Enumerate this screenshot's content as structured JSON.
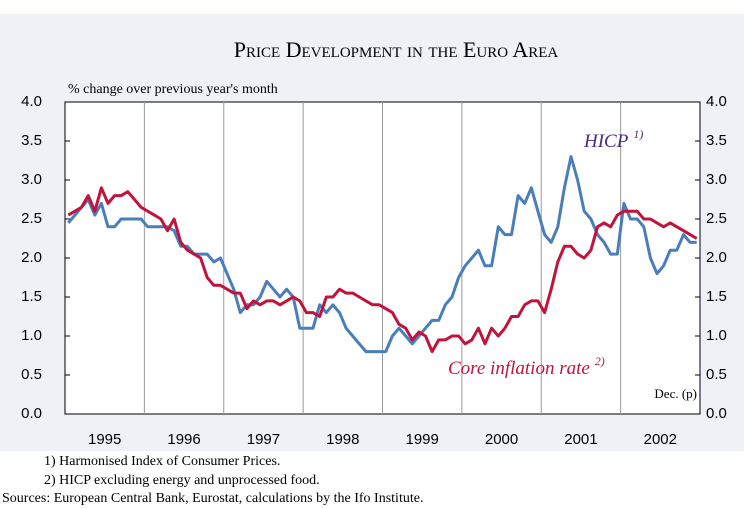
{
  "chart_data": {
    "type": "line",
    "title": "Price Development in the Euro Area",
    "y_label": "% change over previous year's month",
    "annotation": "Dec. (p)",
    "categories": [
      null,
      null,
      null,
      null,
      null,
      "1995",
      null,
      null,
      null,
      null,
      null,
      null,
      null,
      null,
      null,
      null,
      null,
      "1996",
      null,
      null,
      null,
      null,
      null,
      null,
      null,
      null,
      null,
      null,
      null,
      "1997",
      null,
      null,
      null,
      null,
      null,
      null,
      null,
      null,
      null,
      null,
      null,
      "1998",
      null,
      null,
      null,
      null,
      null,
      null,
      null,
      null,
      null,
      null,
      null,
      "1999",
      null,
      null,
      null,
      null,
      null,
      null,
      null,
      null,
      null,
      null,
      null,
      "2000",
      null,
      null,
      null,
      null,
      null,
      null,
      null,
      null,
      null,
      null,
      null,
      "2001",
      null,
      null,
      null,
      null,
      null,
      null,
      null,
      null,
      null,
      null,
      null,
      "2002",
      null,
      null,
      null,
      null,
      null,
      null
    ],
    "series": [
      {
        "name": "HICP",
        "note": "1)",
        "color": "#4a7ebb",
        "values": [
          2.45,
          2.55,
          2.65,
          2.75,
          2.55,
          2.7,
          2.4,
          2.4,
          2.5,
          2.5,
          2.5,
          2.5,
          2.4,
          2.4,
          2.4,
          2.4,
          2.35,
          2.15,
          2.15,
          2.05,
          2.05,
          2.05,
          1.95,
          2.0,
          1.8,
          1.6,
          1.3,
          1.4,
          1.4,
          1.5,
          1.7,
          1.6,
          1.5,
          1.6,
          1.5,
          1.1,
          1.1,
          1.1,
          1.4,
          1.3,
          1.4,
          1.3,
          1.1,
          1.0,
          0.9,
          0.8,
          0.8,
          0.8,
          0.8,
          1.0,
          1.1,
          1.0,
          0.9,
          1.0,
          1.1,
          1.2,
          1.2,
          1.4,
          1.5,
          1.75,
          1.9,
          2.0,
          2.1,
          1.9,
          1.9,
          2.4,
          2.3,
          2.3,
          2.8,
          2.7,
          2.9,
          2.6,
          2.3,
          2.2,
          2.4,
          2.9,
          3.3,
          3.0,
          2.6,
          2.5,
          2.3,
          2.2,
          2.05,
          2.05,
          2.7,
          2.5,
          2.5,
          2.4,
          2.0,
          1.8,
          1.9,
          2.1,
          2.1,
          2.3,
          2.2,
          2.2
        ]
      },
      {
        "name": "Core inflation rate",
        "note": "2)",
        "color": "#c0143c",
        "values": [
          2.55,
          2.6,
          2.65,
          2.8,
          2.6,
          2.9,
          2.7,
          2.8,
          2.8,
          2.85,
          2.75,
          2.65,
          2.6,
          2.55,
          2.5,
          2.35,
          2.5,
          2.2,
          2.1,
          2.05,
          2.0,
          1.75,
          1.65,
          1.65,
          1.6,
          1.55,
          1.55,
          1.35,
          1.45,
          1.4,
          1.45,
          1.45,
          1.4,
          1.45,
          1.5,
          1.45,
          1.3,
          1.3,
          1.25,
          1.5,
          1.5,
          1.6,
          1.55,
          1.55,
          1.5,
          1.45,
          1.4,
          1.4,
          1.35,
          1.3,
          1.15,
          1.1,
          0.95,
          1.05,
          1.0,
          0.8,
          0.95,
          0.95,
          1.0,
          1.0,
          0.9,
          0.95,
          1.1,
          0.9,
          1.1,
          1.0,
          1.1,
          1.25,
          1.25,
          1.4,
          1.45,
          1.45,
          1.3,
          1.6,
          1.95,
          2.15,
          2.15,
          2.05,
          2.0,
          2.1,
          2.4,
          2.45,
          2.4,
          2.55,
          2.6,
          2.6,
          2.6,
          2.5,
          2.5,
          2.45,
          2.4,
          2.45,
          2.4,
          2.35,
          2.3,
          2.25
        ]
      }
    ],
    "ylim": [
      0,
      4
    ],
    "yticks": [
      {
        "value": 0,
        "label": "0.0"
      },
      {
        "value": 0.5,
        "label": "0.5"
      },
      {
        "value": 1,
        "label": "1.0"
      },
      {
        "value": 1.5,
        "label": "1.5"
      },
      {
        "value": 2,
        "label": "2.0"
      },
      {
        "value": 2.5,
        "label": "2.5"
      },
      {
        "value": 3,
        "label": "3.0"
      },
      {
        "value": 3.5,
        "label": "3.5"
      },
      {
        "value": 4,
        "label": "4.0"
      }
    ],
    "y2lim": [
      0,
      4
    ],
    "y2ticks": [
      {
        "value": 0,
        "label": "0.0"
      },
      {
        "value": 0.5,
        "label": "0.5"
      },
      {
        "value": 1,
        "label": "1.0"
      },
      {
        "value": 1.5,
        "label": "1.5"
      },
      {
        "value": 2,
        "label": "2.0"
      },
      {
        "value": 2.5,
        "label": "2.5"
      },
      {
        "value": 3,
        "label": "3.0"
      },
      {
        "value": 3.5,
        "label": "3.5"
      },
      {
        "value": 4,
        "label": "4.0"
      }
    ],
    "grid": false,
    "footnotes": [
      "1) Harmonised Index of Consumer Prices.",
      "2) HICP excluding energy and unprocessed food."
    ],
    "source": "Sources: European Central Bank, Eurostat, calculations by the Ifo Institute."
  }
}
